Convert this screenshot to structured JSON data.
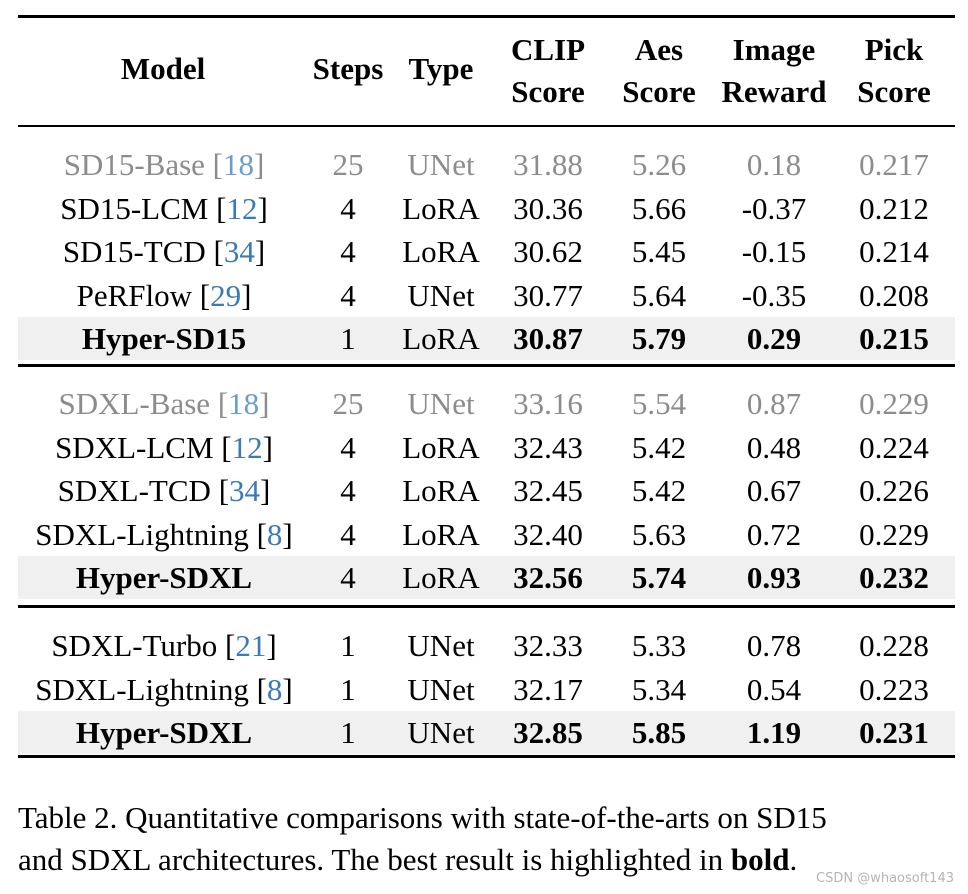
{
  "columns": {
    "model": "Model",
    "steps": "Steps",
    "type": "Type",
    "clip_1": "CLIP",
    "clip_2": "Score",
    "aes_1": "Aes",
    "aes_2": "Score",
    "ir_1": "Image",
    "ir_2": "Reward",
    "pick_1": "Pick",
    "pick_2": "Score"
  },
  "groups": [
    {
      "rows": [
        {
          "name": "SD15-Base ",
          "ref_open": "[",
          "ref": "18",
          "ref_close": "]",
          "steps": "25",
          "type": "UNet",
          "clip": "31.88",
          "aes": "5.26",
          "ir": "0.18",
          "pick": "0.217",
          "style": "base"
        },
        {
          "name": "SD15-LCM ",
          "ref_open": "[",
          "ref": "12",
          "ref_close": "]",
          "steps": "4",
          "type": "LoRA",
          "clip": "30.36",
          "aes": "5.66",
          "ir": "-0.37",
          "pick": "0.212",
          "style": "normal"
        },
        {
          "name": "SD15-TCD ",
          "ref_open": "[",
          "ref": "34",
          "ref_close": "]",
          "steps": "4",
          "type": "LoRA",
          "clip": "30.62",
          "aes": "5.45",
          "ir": "-0.15",
          "pick": "0.214",
          "style": "normal"
        },
        {
          "name": "PeRFlow ",
          "ref_open": "[",
          "ref": "29",
          "ref_close": "]",
          "steps": "4",
          "type": "UNet",
          "clip": "30.77",
          "aes": "5.64",
          "ir": "-0.35",
          "pick": "0.208",
          "style": "normal"
        },
        {
          "name": "Hyper-SD15",
          "ref_open": "",
          "ref": "",
          "ref_close": "",
          "steps": "1",
          "type": "LoRA",
          "clip": "30.87",
          "aes": "5.79",
          "ir": "0.29",
          "pick": "0.215",
          "style": "best"
        }
      ]
    },
    {
      "rows": [
        {
          "name": "SDXL-Base ",
          "ref_open": "[",
          "ref": "18",
          "ref_close": "]",
          "steps": "25",
          "type": "UNet",
          "clip": "33.16",
          "aes": "5.54",
          "ir": "0.87",
          "pick": "0.229",
          "style": "base"
        },
        {
          "name": "SDXL-LCM ",
          "ref_open": "[",
          "ref": "12",
          "ref_close": "]",
          "steps": "4",
          "type": "LoRA",
          "clip": "32.43",
          "aes": "5.42",
          "ir": "0.48",
          "pick": "0.224",
          "style": "normal"
        },
        {
          "name": "SDXL-TCD ",
          "ref_open": "[",
          "ref": "34",
          "ref_close": "]",
          "steps": "4",
          "type": "LoRA",
          "clip": "32.45",
          "aes": "5.42",
          "ir": "0.67",
          "pick": "0.226",
          "style": "normal"
        },
        {
          "name": "SDXL-Lightning ",
          "ref_open": "[",
          "ref": "8",
          "ref_close": "]",
          "steps": "4",
          "type": "LoRA",
          "clip": "32.40",
          "aes": "5.63",
          "ir": "0.72",
          "pick": "0.229",
          "style": "normal"
        },
        {
          "name": "Hyper-SDXL",
          "ref_open": "",
          "ref": "",
          "ref_close": "",
          "steps": "4",
          "type": "LoRA",
          "clip": "32.56",
          "aes": "5.74",
          "ir": "0.93",
          "pick": "0.232",
          "style": "best"
        }
      ]
    },
    {
      "rows": [
        {
          "name": "SDXL-Turbo ",
          "ref_open": "[",
          "ref": "21",
          "ref_close": "]",
          "steps": "1",
          "type": "UNet",
          "clip": "32.33",
          "aes": "5.33",
          "ir": "0.78",
          "pick": "0.228",
          "style": "normal"
        },
        {
          "name": "SDXL-Lightning ",
          "ref_open": "[",
          "ref": "8",
          "ref_close": "]",
          "steps": "1",
          "type": "UNet",
          "clip": "32.17",
          "aes": "5.34",
          "ir": "0.54",
          "pick": "0.223",
          "style": "normal"
        },
        {
          "name": "Hyper-SDXL",
          "ref_open": "",
          "ref": "",
          "ref_close": "",
          "steps": "1",
          "type": "UNet",
          "clip": "32.85",
          "aes": "5.85",
          "ir": "1.19",
          "pick": "0.231",
          "style": "best"
        }
      ]
    }
  ],
  "caption": {
    "line1": "Table 2. Quantitative comparisons with state-of-the-arts on SD15",
    "line2_pre": "and SDXL architectures. The best result is highlighted in ",
    "line2_bold": "bold",
    "line2_post": "."
  },
  "watermark": "CSDN @whaosoft143"
}
